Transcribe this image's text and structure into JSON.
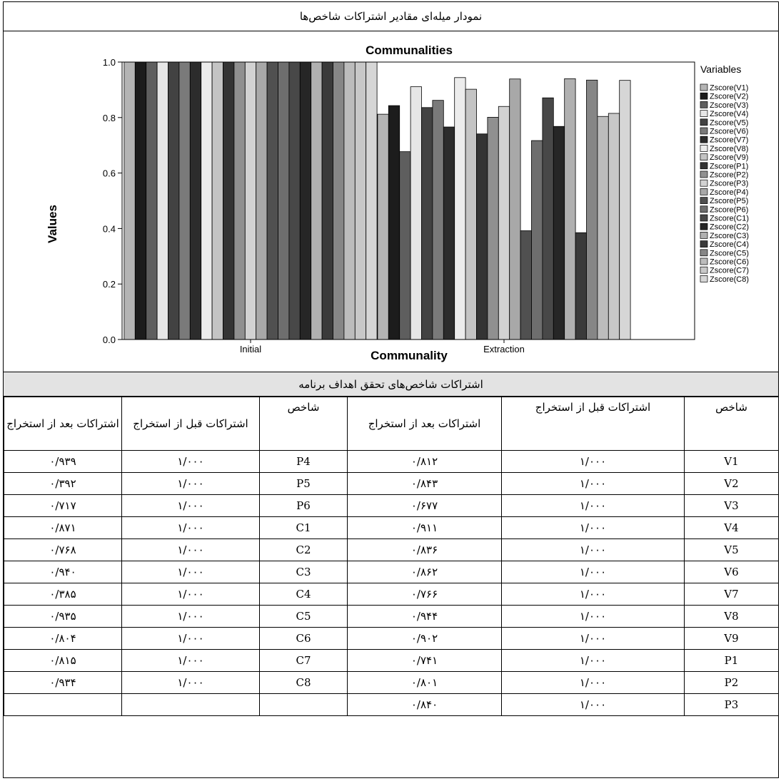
{
  "chart_title_fa": "نمودار میله‌ای مقادیر اشتراکات شاخص‌ها",
  "table_title_fa": "اشتراکات شاخص‌های تحقق اهداف برنامه",
  "headers": {
    "index": "شاخص",
    "before": "اشتراکات قبل از استخراج",
    "after": "اشتراکات بعد از استخراج"
  },
  "chart_data": {
    "type": "bar",
    "title": "Communalities",
    "xlabel": "Communality",
    "ylabel": "Values",
    "categories": [
      "Initial",
      "Extraction"
    ],
    "ylim": [
      0,
      1.0
    ],
    "yticks": [
      "0.0",
      "0.2",
      "0.4",
      "0.6",
      "0.8",
      "1.0"
    ],
    "legend_title": "Variables",
    "legend_position": "right",
    "series": [
      {
        "name": "Zscore(V1)",
        "values": [
          1.0,
          0.812
        ],
        "color": "#b4b4b4"
      },
      {
        "name": "Zscore(V2)",
        "values": [
          1.0,
          0.843
        ],
        "color": "#1c1c1c"
      },
      {
        "name": "Zscore(V3)",
        "values": [
          1.0,
          0.677
        ],
        "color": "#5e5e5e"
      },
      {
        "name": "Zscore(V4)",
        "values": [
          1.0,
          0.911
        ],
        "color": "#e6e6e6"
      },
      {
        "name": "Zscore(V5)",
        "values": [
          1.0,
          0.836
        ],
        "color": "#424242"
      },
      {
        "name": "Zscore(V6)",
        "values": [
          1.0,
          0.862
        ],
        "color": "#7a7a7a"
      },
      {
        "name": "Zscore(V7)",
        "values": [
          1.0,
          0.766
        ],
        "color": "#2c2c2c"
      },
      {
        "name": "Zscore(V8)",
        "values": [
          1.0,
          0.944
        ],
        "color": "#ececec"
      },
      {
        "name": "Zscore(V9)",
        "values": [
          1.0,
          0.902
        ],
        "color": "#c4c4c4"
      },
      {
        "name": "Zscore(P1)",
        "values": [
          1.0,
          0.741
        ],
        "color": "#343434"
      },
      {
        "name": "Zscore(P2)",
        "values": [
          1.0,
          0.801
        ],
        "color": "#909090"
      },
      {
        "name": "Zscore(P3)",
        "values": [
          1.0,
          0.84
        ],
        "color": "#d2d2d2"
      },
      {
        "name": "Zscore(P4)",
        "values": [
          1.0,
          0.939
        ],
        "color": "#a8a8a8"
      },
      {
        "name": "Zscore(P5)",
        "values": [
          1.0,
          0.392
        ],
        "color": "#505050"
      },
      {
        "name": "Zscore(P6)",
        "values": [
          1.0,
          0.717
        ],
        "color": "#6e6e6e"
      },
      {
        "name": "Zscore(C1)",
        "values": [
          1.0,
          0.871
        ],
        "color": "#484848"
      },
      {
        "name": "Zscore(C2)",
        "values": [
          1.0,
          0.768
        ],
        "color": "#262626"
      },
      {
        "name": "Zscore(C3)",
        "values": [
          1.0,
          0.94
        ],
        "color": "#b0b0b0"
      },
      {
        "name": "Zscore(C4)",
        "values": [
          1.0,
          0.385
        ],
        "color": "#3a3a3a"
      },
      {
        "name": "Zscore(C5)",
        "values": [
          1.0,
          0.935
        ],
        "color": "#868686"
      },
      {
        "name": "Zscore(C6)",
        "values": [
          1.0,
          0.804
        ],
        "color": "#bcbcbc"
      },
      {
        "name": "Zscore(C7)",
        "values": [
          1.0,
          0.815
        ],
        "color": "#c8c8c8"
      },
      {
        "name": "Zscore(C8)",
        "values": [
          1.0,
          0.934
        ],
        "color": "#d6d6d6"
      }
    ]
  },
  "table_rows": [
    {
      "right": {
        "code": "V1",
        "before": "۱/۰۰۰",
        "after": "۰/۸۱۲"
      },
      "left": {
        "code": "P4",
        "before": "۱/۰۰۰",
        "after": "۰/۹۳۹"
      }
    },
    {
      "right": {
        "code": "V2",
        "before": "۱/۰۰۰",
        "after": "۰/۸۴۳"
      },
      "left": {
        "code": "P5",
        "before": "۱/۰۰۰",
        "after": "۰/۳۹۲"
      }
    },
    {
      "right": {
        "code": "V3",
        "before": "۱/۰۰۰",
        "after": "۰/۶۷۷"
      },
      "left": {
        "code": "P6",
        "before": "۱/۰۰۰",
        "after": "۰/۷۱۷"
      }
    },
    {
      "right": {
        "code": "V4",
        "before": "۱/۰۰۰",
        "after": "۰/۹۱۱"
      },
      "left": {
        "code": "C1",
        "before": "۱/۰۰۰",
        "after": "۰/۸۷۱"
      }
    },
    {
      "right": {
        "code": "V5",
        "before": "۱/۰۰۰",
        "after": "۰/۸۳۶"
      },
      "left": {
        "code": "C2",
        "before": "۱/۰۰۰",
        "after": "۰/۷۶۸"
      }
    },
    {
      "right": {
        "code": "V6",
        "before": "۱/۰۰۰",
        "after": "۰/۸۶۲"
      },
      "left": {
        "code": "C3",
        "before": "۱/۰۰۰",
        "after": "۰/۹۴۰"
      }
    },
    {
      "right": {
        "code": "V7",
        "before": "۱/۰۰۰",
        "after": "۰/۷۶۶"
      },
      "left": {
        "code": "C4",
        "before": "۱/۰۰۰",
        "after": "۰/۳۸۵"
      }
    },
    {
      "right": {
        "code": "V8",
        "before": "۱/۰۰۰",
        "after": "۰/۹۴۴"
      },
      "left": {
        "code": "C5",
        "before": "۱/۰۰۰",
        "after": "۰/۹۳۵"
      }
    },
    {
      "right": {
        "code": "V9",
        "before": "۱/۰۰۰",
        "after": "۰/۹۰۲"
      },
      "left": {
        "code": "C6",
        "before": "۱/۰۰۰",
        "after": "۰/۸۰۴"
      }
    },
    {
      "right": {
        "code": "P1",
        "before": "۱/۰۰۰",
        "after": "۰/۷۴۱"
      },
      "left": {
        "code": "C7",
        "before": "۱/۰۰۰",
        "after": "۰/۸۱۵"
      }
    },
    {
      "right": {
        "code": "P2",
        "before": "۱/۰۰۰",
        "after": "۰/۸۰۱"
      },
      "left": {
        "code": "C8",
        "before": "۱/۰۰۰",
        "after": "۰/۹۳۴"
      }
    },
    {
      "right": {
        "code": "P3",
        "before": "۱/۰۰۰",
        "after": "۰/۸۴۰"
      },
      "left": {
        "code": "",
        "before": "",
        "after": ""
      }
    }
  ]
}
